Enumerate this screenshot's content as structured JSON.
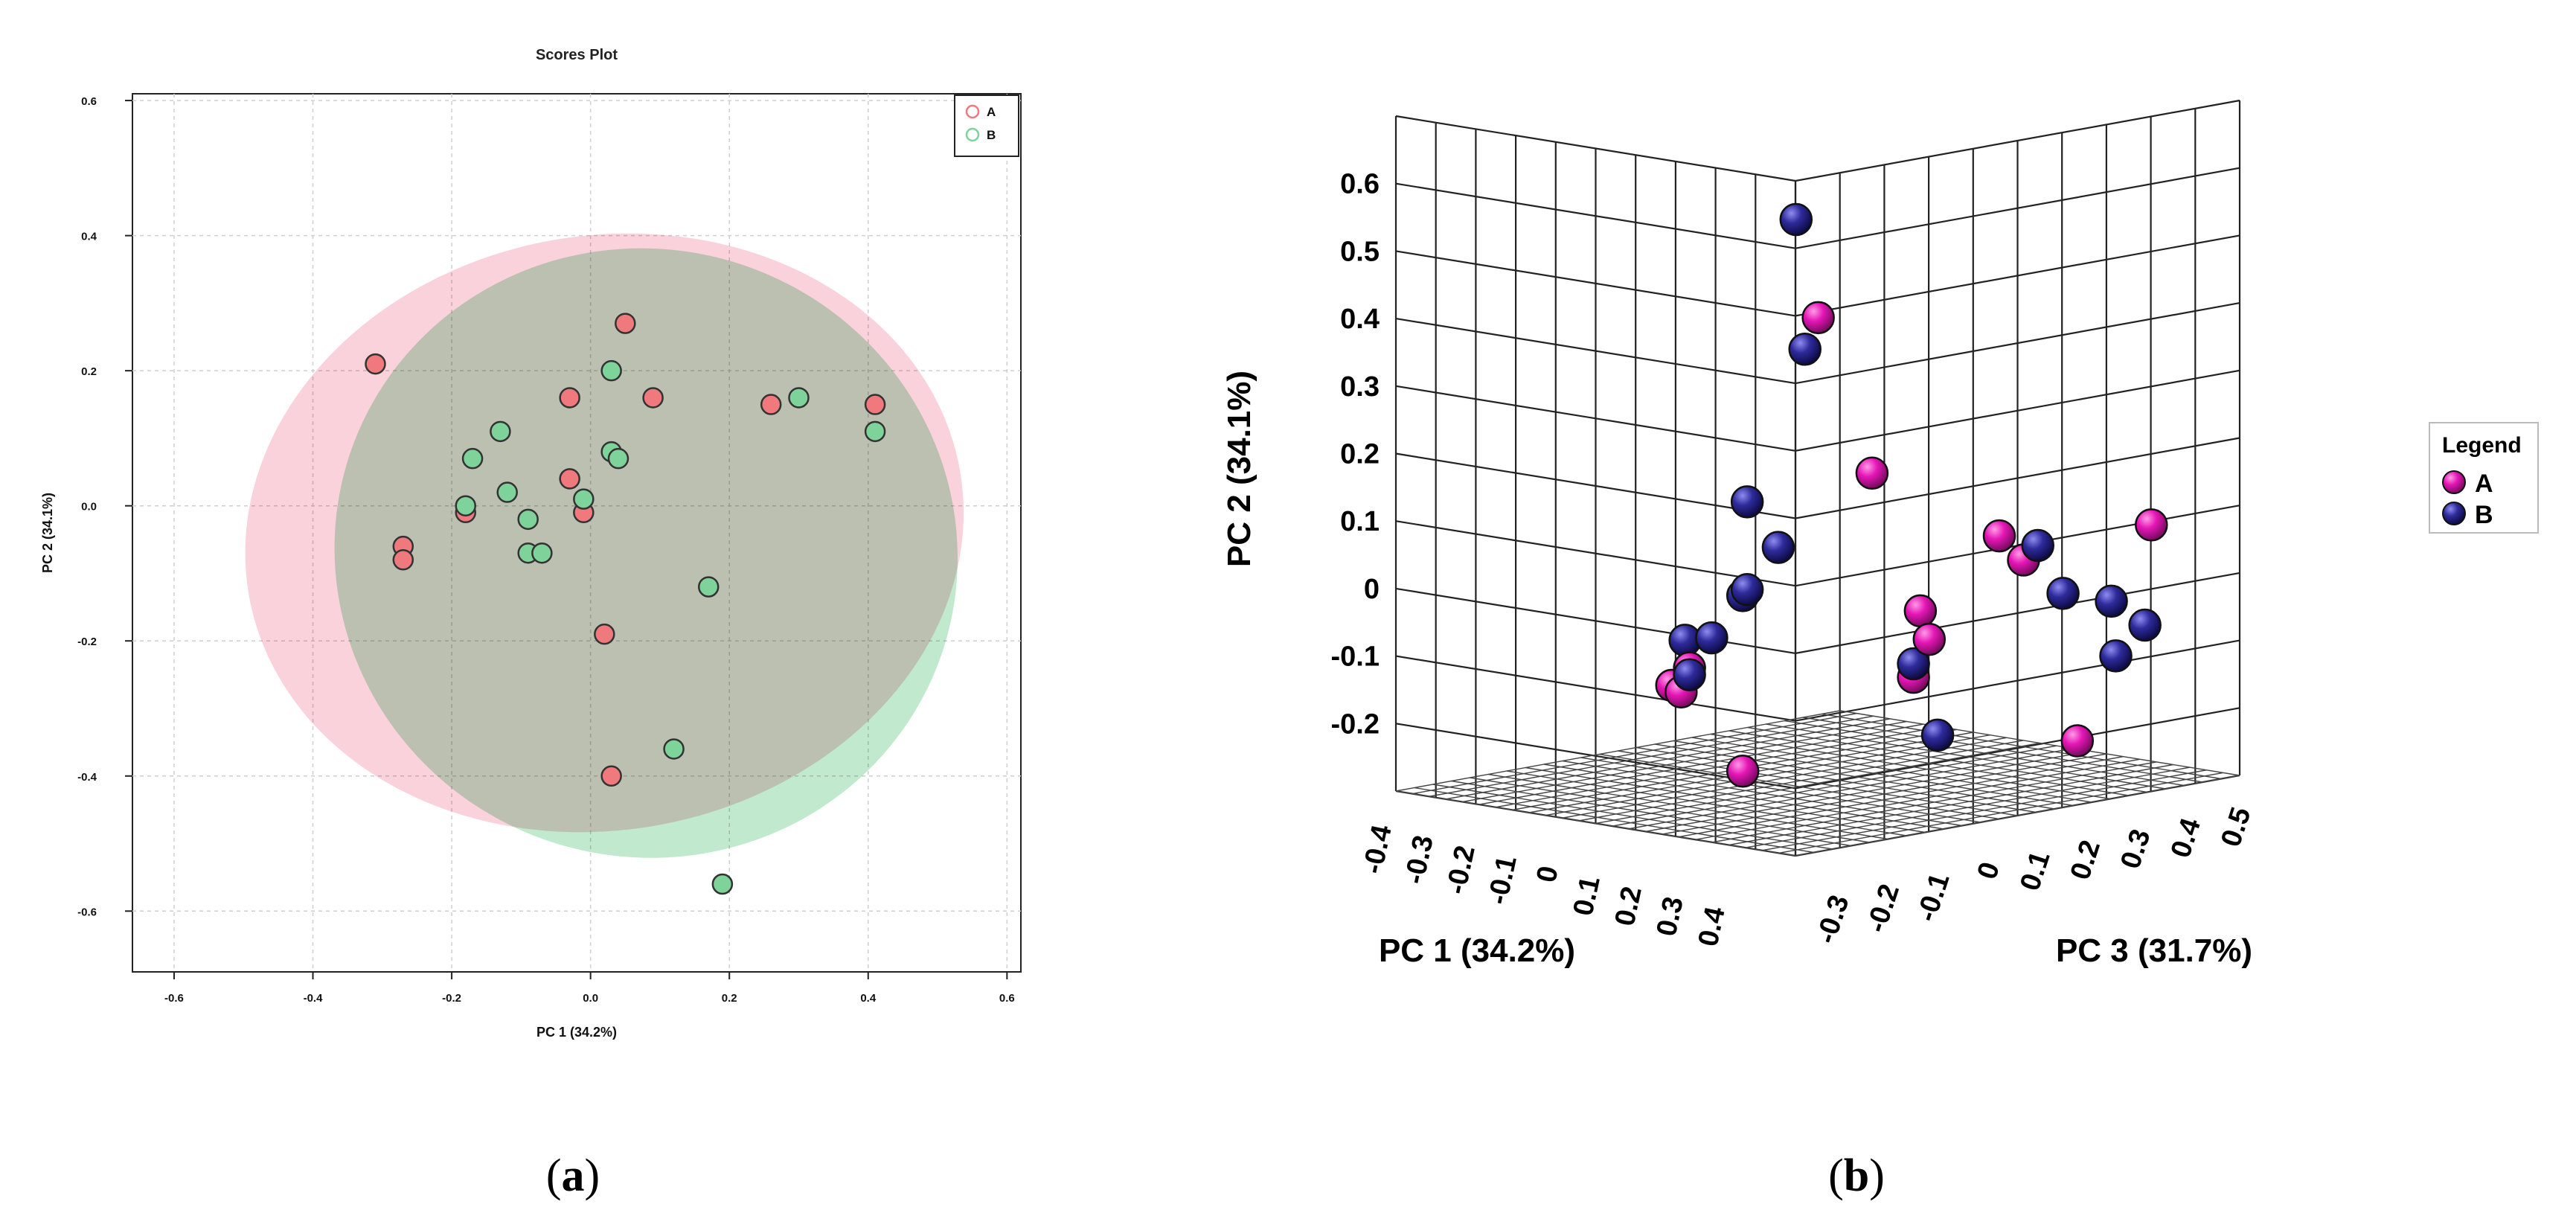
{
  "chart_data": [
    {
      "type": "scatter",
      "panel_label": "a",
      "title": "Scores Plot",
      "xlabel": "PC 1 (34.2%)",
      "ylabel": "PC 2 (34.1%)",
      "xlim": [
        -0.66,
        0.62
      ],
      "ylim": [
        -0.69,
        0.61
      ],
      "xticks": [
        "-0.6",
        "-0.4",
        "-0.2",
        "0.0",
        "0.2",
        "0.4",
        "0.6"
      ],
      "yticks": [
        "0.6",
        "0.4",
        "0.2",
        "0.0",
        "-0.2",
        "-0.4",
        "-0.6"
      ],
      "grid": true,
      "legend_position": "top-right",
      "series": [
        {
          "name": "A",
          "color": "#f0797e",
          "ellipse_color": "#f7b7c5",
          "ellipse": {
            "cx": 0.02,
            "cy": -0.04,
            "rx": 0.52,
            "ry": 0.44,
            "angle_deg": 10
          },
          "points": [
            {
              "x": -0.31,
              "y": 0.21
            },
            {
              "x": 0.05,
              "y": 0.27
            },
            {
              "x": -0.03,
              "y": 0.16
            },
            {
              "x": 0.09,
              "y": 0.16
            },
            {
              "x": 0.26,
              "y": 0.15
            },
            {
              "x": 0.41,
              "y": 0.15
            },
            {
              "x": -0.27,
              "y": -0.06
            },
            {
              "x": -0.27,
              "y": -0.08
            },
            {
              "x": -0.18,
              "y": -0.01
            },
            {
              "x": -0.03,
              "y": 0.04
            },
            {
              "x": -0.01,
              "y": -0.01
            },
            {
              "x": 0.02,
              "y": -0.19
            },
            {
              "x": 0.03,
              "y": -0.4
            }
          ]
        },
        {
          "name": "B",
          "color": "#7ed39b",
          "ellipse_color": "#a8e0bb",
          "ellipse": {
            "cx": 0.08,
            "cy": -0.07,
            "rx": 0.45,
            "ry": 0.45,
            "angle_deg": -18
          },
          "points": [
            {
              "x": -0.13,
              "y": 0.11
            },
            {
              "x": -0.17,
              "y": 0.07
            },
            {
              "x": 0.03,
              "y": 0.2
            },
            {
              "x": 0.3,
              "y": 0.16
            },
            {
              "x": 0.41,
              "y": 0.11
            },
            {
              "x": 0.03,
              "y": 0.08
            },
            {
              "x": 0.04,
              "y": 0.07
            },
            {
              "x": -0.12,
              "y": 0.02
            },
            {
              "x": -0.18,
              "y": 0.0
            },
            {
              "x": -0.09,
              "y": -0.02
            },
            {
              "x": -0.01,
              "y": 0.01
            },
            {
              "x": -0.09,
              "y": -0.07
            },
            {
              "x": -0.07,
              "y": -0.07
            },
            {
              "x": 0.17,
              "y": -0.12
            },
            {
              "x": 0.12,
              "y": -0.36
            },
            {
              "x": 0.19,
              "y": -0.56
            }
          ]
        }
      ]
    },
    {
      "type": "scatter",
      "panel_label": "b",
      "xlabel": "PC 1 (34.2%)",
      "ylabel": "PC 2 (34.1%)",
      "zlabel": "PC 3 (31.7%)",
      "ylim": [
        -0.3,
        0.7
      ],
      "yticks": [
        "0.6",
        "0.5",
        "0.4",
        "0.3",
        "0.2",
        "0.1",
        "0",
        "-0.1",
        "-0.2"
      ],
      "xticks": [
        "-0.4",
        "-0.3",
        "-0.2",
        "-0.1",
        "0",
        "0.1",
        "0.2",
        "0.3",
        "0.4"
      ],
      "zticks": [
        "-0.3",
        "-0.2",
        "-0.1",
        "0",
        "0.1",
        "0.2",
        "0.3",
        "0.4",
        "0.5"
      ],
      "legend_title": "Legend",
      "legend_position": "right",
      "series": [
        {
          "name": "A",
          "color": "#e516b6",
          "points": [
            {
              "x": 0.09,
              "y": 0.41,
              "z": 0.02
            },
            {
              "x": 0.2,
              "y": 0.19,
              "z": 0.03
            },
            {
              "x": 0.32,
              "y": 0.0,
              "z": 0.02
            },
            {
              "x": 0.34,
              "y": -0.04,
              "z": 0.02
            },
            {
              "x": 0.26,
              "y": -0.11,
              "z": 0.06
            },
            {
              "x": 0.32,
              "y": 0.09,
              "z": 0.18
            },
            {
              "x": 0.33,
              "y": 0.05,
              "z": 0.22
            },
            {
              "x": 0.34,
              "y": 0.07,
              "z": 0.47
            },
            {
              "x": -0.2,
              "y": -0.14,
              "z": 0.02
            },
            {
              "x": -0.24,
              "y": -0.17,
              "z": 0.02
            },
            {
              "x": -0.23,
              "y": -0.18,
              "z": 0.03
            },
            {
              "x": 0.34,
              "y": -0.23,
              "z": 0.32
            },
            {
              "x": -0.08,
              "y": -0.28,
              "z": 0.02
            }
          ]
        },
        {
          "name": "B",
          "color": "#2e2b9c",
          "points": [
            {
              "x": 0.04,
              "y": 0.55,
              "z": 0.02
            },
            {
              "x": 0.06,
              "y": 0.36,
              "z": 0.02
            },
            {
              "x": -0.07,
              "y": 0.12,
              "z": 0.02
            },
            {
              "x": 0.0,
              "y": 0.06,
              "z": 0.02
            },
            {
              "x": -0.07,
              "y": -0.01,
              "z": 0.02
            },
            {
              "x": -0.08,
              "y": -0.02,
              "z": 0.02
            },
            {
              "x": -0.15,
              "y": -0.09,
              "z": 0.02
            },
            {
              "x": -0.21,
              "y": -0.1,
              "z": 0.02
            },
            {
              "x": -0.2,
              "y": -0.15,
              "z": 0.02
            },
            {
              "x": 0.26,
              "y": -0.09,
              "z": 0.06
            },
            {
              "x": 0.27,
              "y": -0.2,
              "z": 0.1
            },
            {
              "x": 0.34,
              "y": 0.07,
              "z": 0.24
            },
            {
              "x": 0.33,
              "y": -0.01,
              "z": 0.3
            },
            {
              "x": 0.35,
              "y": -0.03,
              "z": 0.38
            },
            {
              "x": 0.36,
              "y": -0.11,
              "z": 0.38
            },
            {
              "x": 0.37,
              "y": -0.07,
              "z": 0.43
            }
          ]
        }
      ]
    }
  ]
}
